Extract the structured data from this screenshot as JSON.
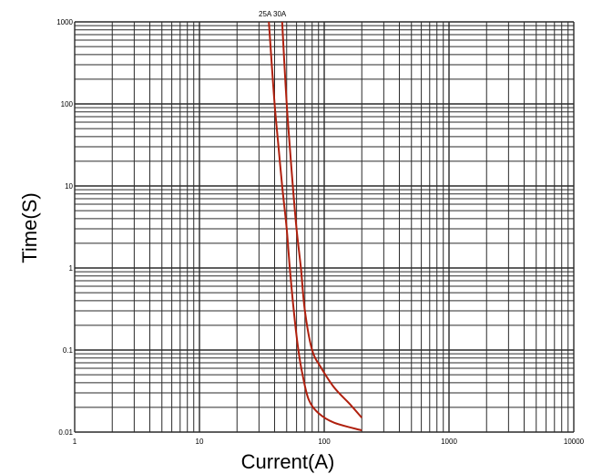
{
  "chart_data": {
    "type": "line",
    "title": "",
    "xlabel": "Current(A)",
    "ylabel": "Time(S)",
    "xscale": "log",
    "yscale": "log",
    "xlim": [
      1,
      10000
    ],
    "ylim": [
      0.01,
      1000
    ],
    "grid": true,
    "x_ticks": [
      "1",
      "10",
      "100",
      "1000",
      "10000"
    ],
    "y_ticks": [
      "0.01",
      "0.1",
      "1",
      "10",
      "100",
      "1000"
    ],
    "series_label_text": "25A 30A",
    "series": [
      {
        "name": "25A",
        "color": "#b0200e",
        "points": [
          [
            36,
            1000
          ],
          [
            38,
            300
          ],
          [
            40,
            100
          ],
          [
            43,
            30
          ],
          [
            46,
            10
          ],
          [
            50,
            3
          ],
          [
            53,
            1
          ],
          [
            57,
            0.3
          ],
          [
            62,
            0.1
          ],
          [
            67,
            0.05
          ],
          [
            75,
            0.025
          ],
          [
            90,
            0.017
          ],
          [
            120,
            0.013
          ],
          [
            200,
            0.0105
          ]
        ]
      },
      {
        "name": "30A",
        "color": "#b0200e",
        "points": [
          [
            46,
            1000
          ],
          [
            48,
            300
          ],
          [
            50,
            100
          ],
          [
            53,
            30
          ],
          [
            56,
            10
          ],
          [
            60,
            3
          ],
          [
            65,
            1
          ],
          [
            70,
            0.3
          ],
          [
            80,
            0.1
          ],
          [
            95,
            0.06
          ],
          [
            120,
            0.035
          ],
          [
            160,
            0.022
          ],
          [
            200,
            0.015
          ]
        ]
      }
    ]
  }
}
